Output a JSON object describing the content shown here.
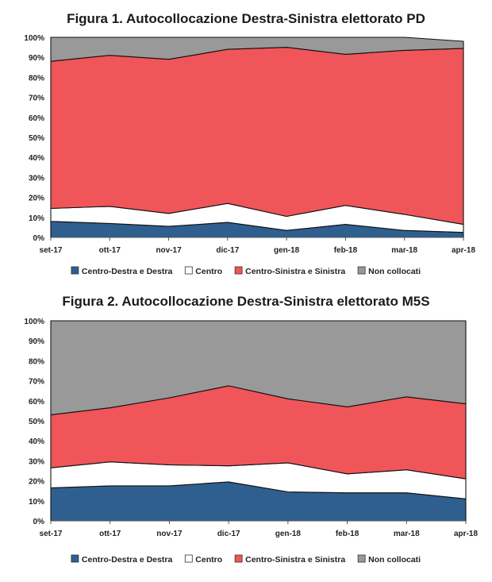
{
  "chart_data": [
    {
      "type": "area",
      "stacked": true,
      "title": "Figura 1. Autocollocazione Destra-Sinistra elettorato PD",
      "categories": [
        "set-17",
        "ott-17",
        "nov-17",
        "dic-17",
        "gen-18",
        "feb-18",
        "mar-18",
        "apr-18"
      ],
      "yticks": [
        "0%",
        "10%",
        "20%",
        "30%",
        "40%",
        "50%",
        "60%",
        "70%",
        "80%",
        "90%",
        "100%"
      ],
      "ylim": [
        0,
        100
      ],
      "xlabel": "",
      "ylabel": "",
      "legend_position": "bottom",
      "series": [
        {
          "name": "Centro-Destra e Destra",
          "color": "#2e5f8f",
          "values": [
            8,
            7,
            5.5,
            7.5,
            3.5,
            6.5,
            3.5,
            2.5
          ]
        },
        {
          "name": "Centro",
          "color": "#ffffff",
          "values": [
            6.5,
            8.5,
            6.5,
            9.5,
            7,
            9.5,
            8,
            4
          ]
        },
        {
          "name": "Centro-Sinistra e Sinistra",
          "color": "#f0555a",
          "values": [
            73.5,
            75.5,
            77,
            77,
            84.5,
            75.5,
            82,
            88
          ]
        },
        {
          "name": "Non collocati",
          "color": "#999999",
          "values": [
            12,
            9,
            11,
            6,
            5,
            8.5,
            6.5,
            3.5
          ]
        }
      ]
    },
    {
      "type": "area",
      "stacked": true,
      "title": "Figura 2. Autocollocazione Destra-Sinistra elettorato M5S",
      "categories": [
        "set-17",
        "ott-17",
        "nov-17",
        "dic-17",
        "gen-18",
        "feb-18",
        "mar-18",
        "apr-18"
      ],
      "yticks": [
        "0%",
        "10%",
        "20%",
        "30%",
        "40%",
        "50%",
        "60%",
        "70%",
        "80%",
        "90%",
        "100%"
      ],
      "ylim": [
        0,
        100
      ],
      "xlabel": "",
      "ylabel": "",
      "legend_position": "bottom",
      "series": [
        {
          "name": "Centro-Destra e Destra",
          "color": "#2e5f8f",
          "values": [
            16.5,
            17.5,
            17.5,
            19.5,
            14.5,
            14,
            14,
            11
          ]
        },
        {
          "name": "Centro",
          "color": "#ffffff",
          "values": [
            10,
            12,
            10.5,
            8,
            14.5,
            9.5,
            11.5,
            10
          ]
        },
        {
          "name": "Centro-Sinistra e Sinistra",
          "color": "#f0555a",
          "values": [
            26.5,
            27,
            33.5,
            40,
            32,
            33.5,
            36.5,
            37.5
          ]
        },
        {
          "name": "Non collocati",
          "color": "#999999",
          "values": [
            47,
            43.5,
            38.5,
            32.5,
            39,
            43,
            38,
            41.5
          ]
        }
      ]
    }
  ]
}
